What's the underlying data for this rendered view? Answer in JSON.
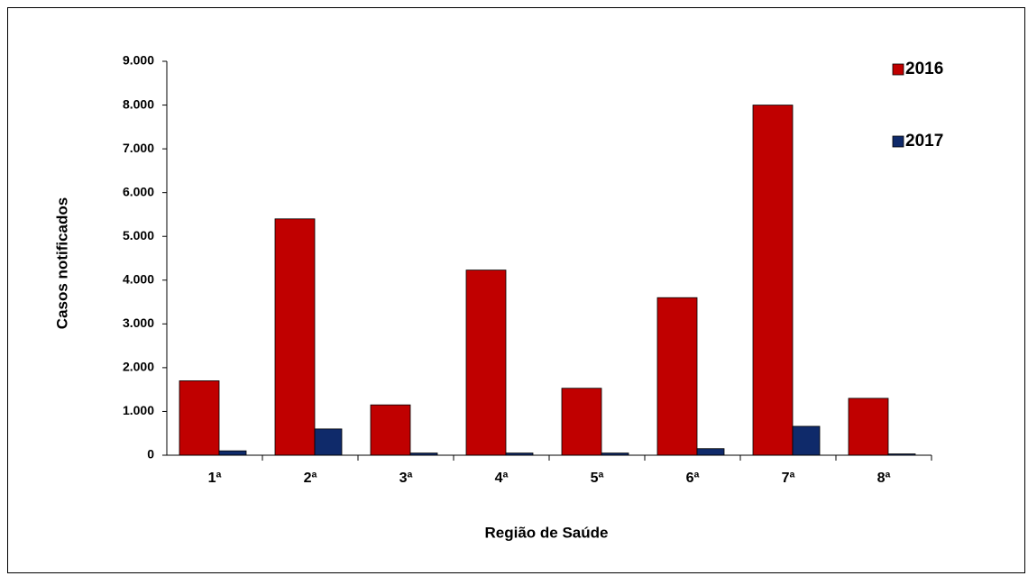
{
  "chart_data": {
    "type": "bar",
    "x_label": "Região de Saúde",
    "y_label": "Casos notificados",
    "categories": [
      "1ª",
      "2ª",
      "3ª",
      "4ª",
      "5ª",
      "6ª",
      "7ª",
      "8ª"
    ],
    "series": [
      {
        "name": "2016",
        "color": "#c00000",
        "values": [
          1700,
          5400,
          1150,
          4230,
          1530,
          3600,
          8000,
          1300
        ]
      },
      {
        "name": "2017",
        "color": "#0f2a6a",
        "values": [
          100,
          600,
          50,
          50,
          50,
          150,
          660,
          30
        ]
      }
    ],
    "ylim": [
      0,
      9000
    ],
    "yticks": [
      0,
      {
        "value": 1000,
        "label": "1.000"
      },
      {
        "value": 2000,
        "label": "2.000"
      },
      {
        "value": 3000,
        "label": "3.000"
      },
      {
        "value": 4000,
        "label": "4.000"
      },
      {
        "value": 5000,
        "label": "5.000"
      },
      {
        "value": 6000,
        "label": "6.000"
      },
      {
        "value": 7000,
        "label": "7.000"
      },
      {
        "value": 8000,
        "label": "8.000"
      },
      {
        "value": 9000,
        "label": "9.000"
      }
    ],
    "grid": false,
    "legend": "top-right"
  }
}
